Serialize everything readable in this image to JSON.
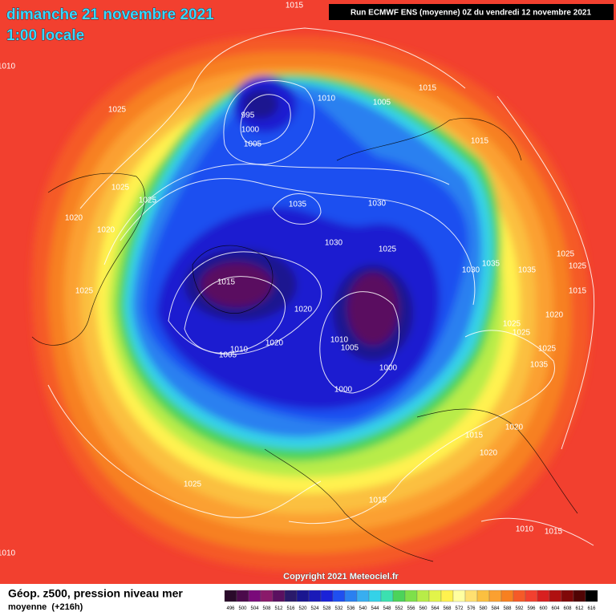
{
  "header": {
    "date": "dimanche 21 novembre 2021",
    "time": "1:00 locale",
    "run": "Run ECMWF ENS (moyenne) 0Z du vendredi 12 novembre 2021"
  },
  "map": {
    "isobar_labels": [
      1015,
      1010,
      1025,
      995,
      1000,
      1005,
      1010,
      1005,
      1015,
      1015,
      1025,
      1025,
      1020,
      1020,
      1035,
      1030,
      1030,
      1025,
      1035,
      1030,
      1035,
      1025,
      1025,
      1015,
      1025,
      1020,
      1015,
      1020,
      1025,
      1025,
      1010,
      1005,
      1020,
      1010,
      1005,
      1000,
      1025,
      1035,
      1000,
      1020,
      1015,
      1020,
      1025,
      1015,
      1010,
      1015,
      1010,
      1015
    ]
  },
  "copyright": "Copyright 2021 Meteociel.fr",
  "legend": {
    "title": "Géop. z500, pression niveau mer",
    "subtitle": "moyenne  (+216h)",
    "scale": [
      {
        "value": 496,
        "color": "#2a0a2a"
      },
      {
        "value": 500,
        "color": "#4b0a4b"
      },
      {
        "value": 504,
        "color": "#7a0a7a"
      },
      {
        "value": 508,
        "color": "#8a1a6a"
      },
      {
        "value": 512,
        "color": "#5a1060"
      },
      {
        "value": 516,
        "color": "#2a1a6a"
      },
      {
        "value": 520,
        "color": "#1a1690"
      },
      {
        "value": 524,
        "color": "#1a1ab8"
      },
      {
        "value": 528,
        "color": "#1a22d8"
      },
      {
        "value": 532,
        "color": "#1f4ff0"
      },
      {
        "value": 536,
        "color": "#2a80f0"
      },
      {
        "value": 540,
        "color": "#38aef0"
      },
      {
        "value": 544,
        "color": "#34d2e8"
      },
      {
        "value": 548,
        "color": "#3ce0b0"
      },
      {
        "value": 552,
        "color": "#4cd35a"
      },
      {
        "value": 556,
        "color": "#7ee04a"
      },
      {
        "value": 560,
        "color": "#b8ec48"
      },
      {
        "value": 564,
        "color": "#e2f44a"
      },
      {
        "value": 568,
        "color": "#fff24f"
      },
      {
        "value": 572,
        "color": "#ffffa0"
      },
      {
        "value": 576,
        "color": "#ffe070"
      },
      {
        "value": 580,
        "color": "#fbc040"
      },
      {
        "value": 584,
        "color": "#fba030"
      },
      {
        "value": 588,
        "color": "#f78020"
      },
      {
        "value": 592,
        "color": "#f55a28"
      },
      {
        "value": 596,
        "color": "#f2402f"
      },
      {
        "value": 600,
        "color": "#d82020"
      },
      {
        "value": 604,
        "color": "#b01010"
      },
      {
        "value": 608,
        "color": "#800808"
      },
      {
        "value": 612,
        "color": "#500404"
      },
      {
        "value": 616,
        "color": "#000000"
      }
    ]
  }
}
